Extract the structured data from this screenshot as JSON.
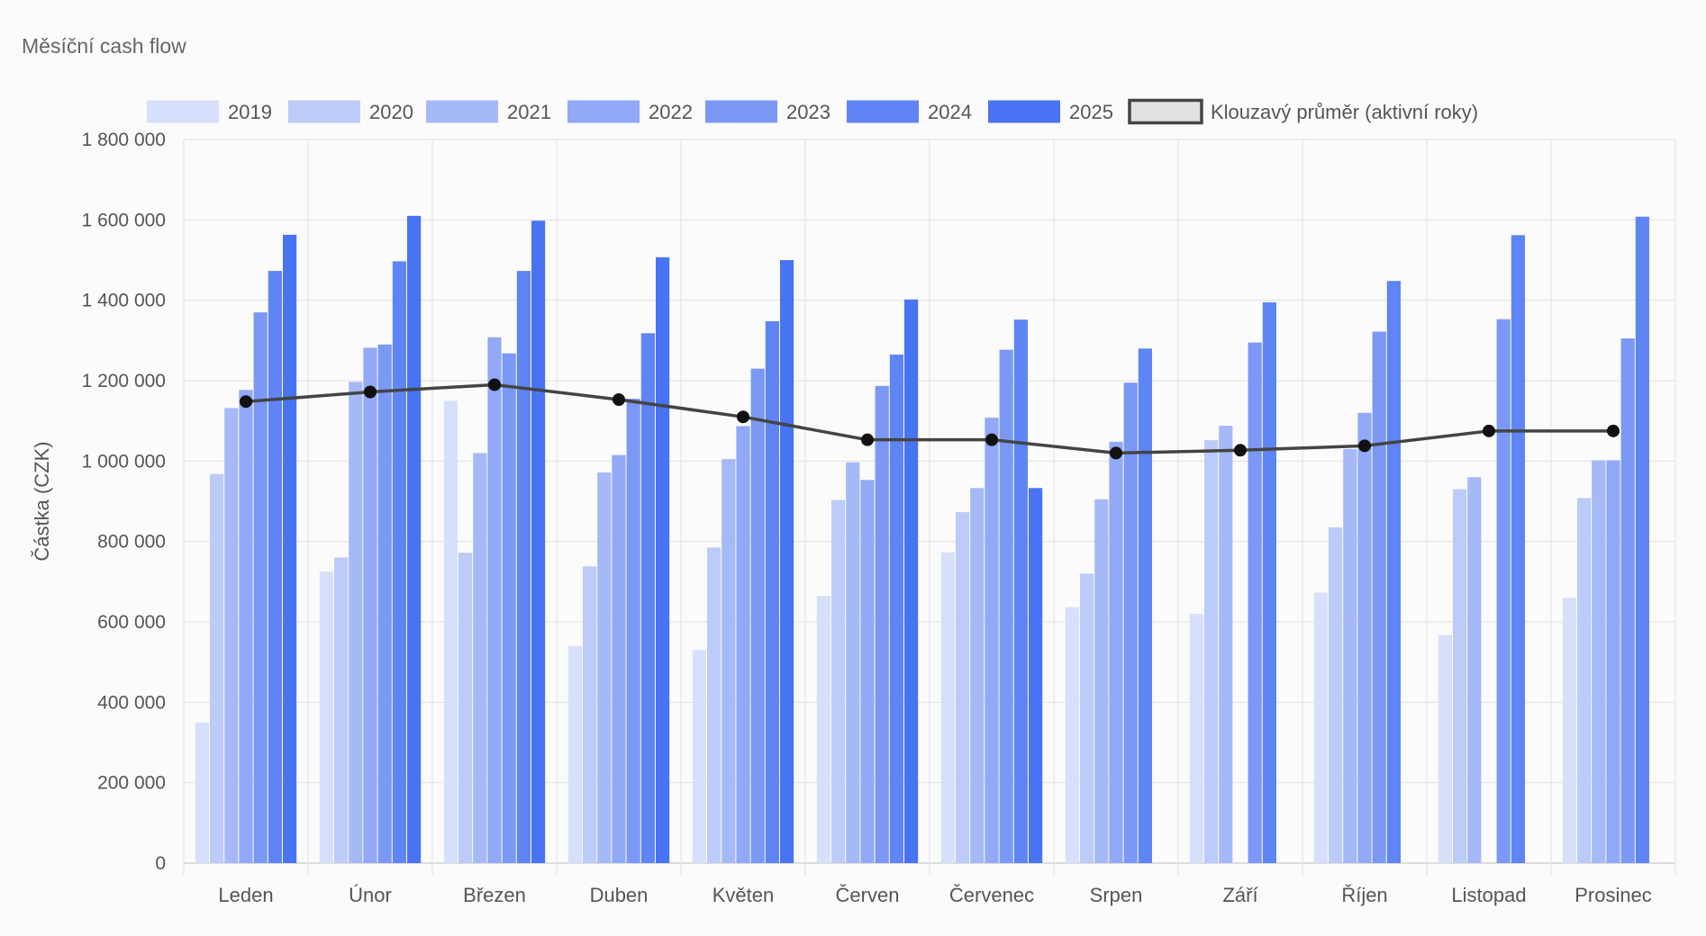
{
  "title": "Měsíční cash flow",
  "chart_data": {
    "type": "bar",
    "title": "Měsíční cash flow",
    "xlabel": "",
    "ylabel": "Částka (CZK)",
    "ylim": [
      0,
      1800000
    ],
    "yticks": [
      0,
      200000,
      400000,
      600000,
      800000,
      1000000,
      1200000,
      1400000,
      1600000,
      1800000
    ],
    "ytick_labels": [
      "0",
      "200 000",
      "400 000",
      "600 000",
      "800 000",
      "1 000 000",
      "1 200 000",
      "1 400 000",
      "1 600 000",
      "1 800 000"
    ],
    "grid": true,
    "legend_position": "top",
    "categories": [
      "Leden",
      "Únor",
      "Březen",
      "Duben",
      "Květen",
      "Červen",
      "Červenec",
      "Srpen",
      "Září",
      "Říjen",
      "Listopad",
      "Prosinec"
    ],
    "series": [
      {
        "name": "2019",
        "color": "#d7e0fa",
        "values": [
          350000,
          725000,
          1150000,
          540000,
          530000,
          665000,
          773000,
          637000,
          620000,
          673000,
          567000,
          660000
        ]
      },
      {
        "name": "2020",
        "color": "#bccbf8",
        "values": [
          968000,
          760000,
          772000,
          738000,
          785000,
          903000,
          873000,
          720000,
          1052000,
          835000,
          930000,
          908000
        ]
      },
      {
        "name": "2021",
        "color": "#a6b9f7",
        "values": [
          1132000,
          1197000,
          1020000,
          972000,
          1005000,
          997000,
          933000,
          905000,
          1088000,
          1030000,
          960000,
          1002000
        ]
      },
      {
        "name": "2022",
        "color": "#91a9f6",
        "values": [
          1177000,
          1282000,
          1308000,
          1015000,
          1087000,
          953000,
          1108000,
          1048000,
          0,
          1120000,
          0,
          1002000
        ]
      },
      {
        "name": "2023",
        "color": "#7b98f5",
        "values": [
          1370000,
          1290000,
          1268000,
          1155000,
          1230000,
          1187000,
          1277000,
          1195000,
          1295000,
          1322000,
          1353000,
          1305000
        ]
      },
      {
        "name": "2024",
        "color": "#5f84f4",
        "values": [
          1473000,
          1497000,
          1473000,
          1318000,
          1348000,
          1265000,
          1352000,
          1280000,
          1395000,
          1448000,
          1562000,
          1608000
        ]
      },
      {
        "name": "2025",
        "color": "#4873f2",
        "values": [
          1563000,
          1610000,
          1598000,
          1507000,
          1500000,
          1402000,
          933000,
          0,
          0,
          0,
          0,
          0
        ]
      }
    ],
    "line_series": {
      "name": "Klouzavý průměr (aktivní roky)",
      "color": "#444444",
      "values": [
        1148000,
        1172000,
        1190000,
        1153000,
        1110000,
        1053000,
        1053000,
        1020000,
        1027000,
        1038000,
        1075000,
        1075000
      ]
    }
  }
}
